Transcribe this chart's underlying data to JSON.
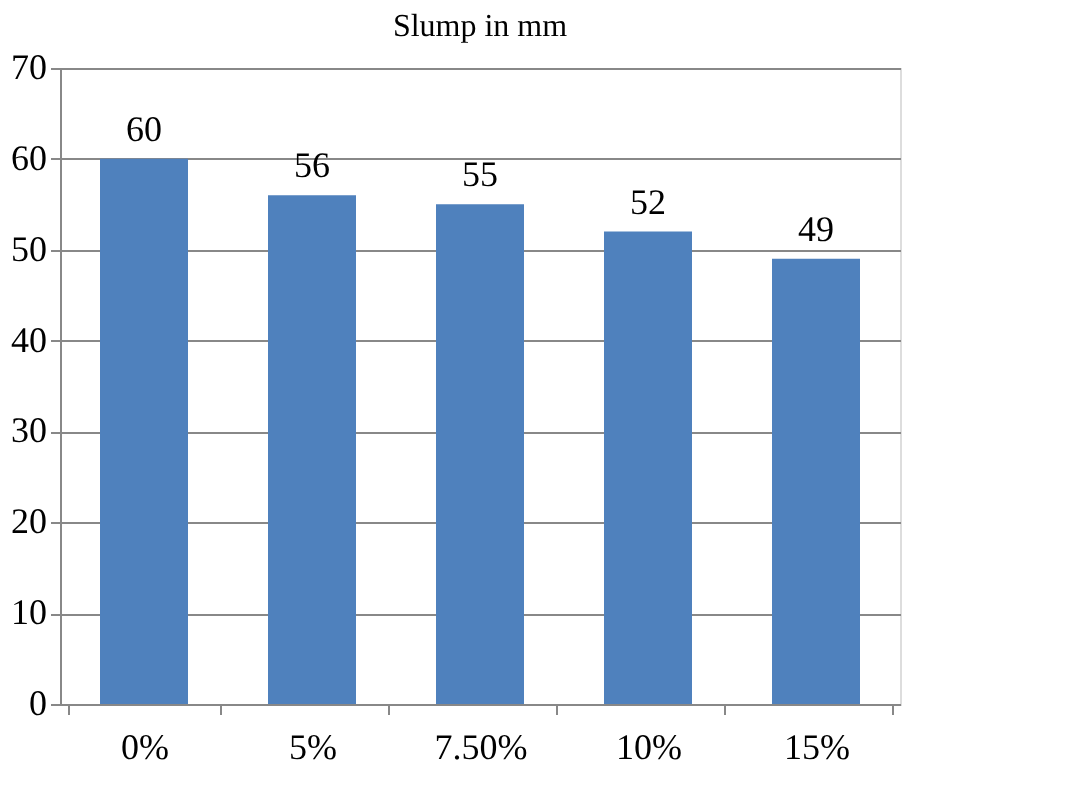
{
  "chart_data": {
    "type": "bar",
    "title": "Slump in mm",
    "categories": [
      "0%",
      "5%",
      "7.50%",
      "10%",
      "15%"
    ],
    "values": [
      60,
      56,
      55,
      52,
      49
    ],
    "color": "#4f81bd",
    "ylim": [
      0,
      70
    ],
    "yticks": [
      0,
      10,
      20,
      30,
      40,
      50,
      60,
      70
    ],
    "grid": "y",
    "data_labels": true
  }
}
